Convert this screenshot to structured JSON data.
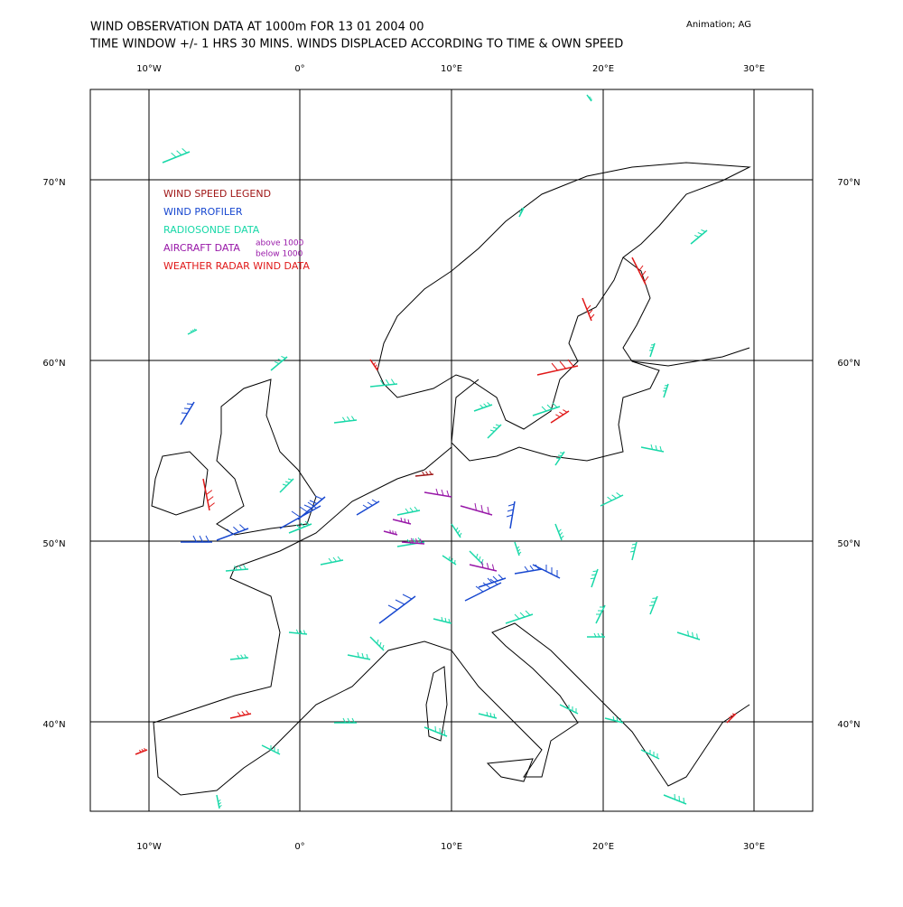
{
  "header": {
    "title": "WIND OBSERVATION DATA AT 1000m FOR 13 01 2004 00",
    "subtitle": "TIME WINDOW +/- 1 HRS 30 MINS. WINDS DISPLACED ACCORDING TO TIME & OWN SPEED",
    "credit": "Animation; AG"
  },
  "map": {
    "lon_labels": [
      "10°W",
      "0°",
      "10°E",
      "20°E",
      "30°E"
    ],
    "lat_labels": [
      "70°N",
      "60°N",
      "50°N",
      "40°N"
    ]
  },
  "legend": {
    "entries": [
      {
        "label": "WIND SPEED LEGEND",
        "color": "#a01818"
      },
      {
        "label": "WIND PROFILER",
        "color": "#1848d0"
      },
      {
        "label": "RADIOSONDE DATA",
        "color": "#18d8a8"
      },
      {
        "label": "AIRCRAFT DATA",
        "color": "#9818a8"
      },
      {
        "label": "WEATHER RADAR WIND DATA",
        "color": "#e01818"
      }
    ],
    "aircraft_notes": [
      "above 1000",
      "below 1000"
    ]
  }
}
